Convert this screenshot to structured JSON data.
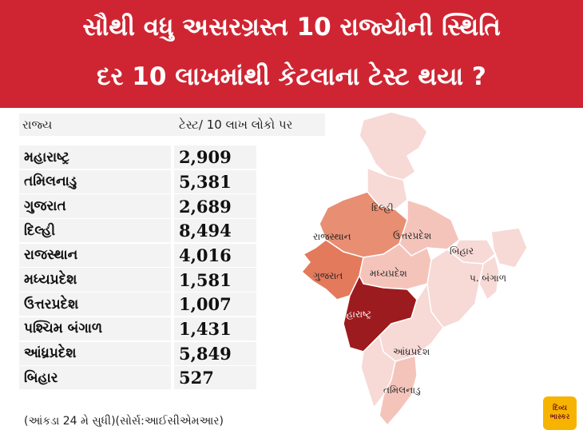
{
  "header": {
    "line1": "સૌથી વધુ અસરગ્રસ્ત  10 રાજ્યોની સ્થિતિ",
    "line2": "દર 10 લાખમાંથી કેટલાના ટેસ્ટ થયા ?"
  },
  "table": {
    "col1": "રાજ્ય",
    "col2": "ટેસ્ટ/ 10 લાખ લોકો પર",
    "rows": [
      {
        "name": "મહારાષ્ટ્ર",
        "value": "2,909"
      },
      {
        "name": "તમિલનાડુ",
        "value": "5,381"
      },
      {
        "name": "ગુજરાત",
        "value": "2,689"
      },
      {
        "name": "દિલ્હી",
        "value": "8,494"
      },
      {
        "name": "રાજસ્થાન",
        "value": "4,016"
      },
      {
        "name": "મધ્યપ્રદેશ",
        "value": "1,581"
      },
      {
        "name": "ઉત્તરપ્રદેશ",
        "value": "1,007"
      },
      {
        "name": "પશ્ચિમ બંગાળ",
        "value": "1,431"
      },
      {
        "name": "આંધ્રપ્રદેશ",
        "value": "5,849"
      },
      {
        "name": "બિહાર",
        "value": "527"
      }
    ]
  },
  "source": "(આંકડા 24 મે સુધી)(સોર્સ:આઈસીએમઆર)",
  "map": {
    "labels": {
      "delhi": "દિલ્હી",
      "rajasthan": "રાજસ્થાન",
      "uttarpradesh": "ઉત્તરપ્રદેશ",
      "bihar": "બિહાર",
      "gujarat": "ગુજરાત",
      "madhyapradesh": "મધ્યપ્રદેશ",
      "bengal": "પ. બંગાળ",
      "maharashtra": "મહારાષ્ટ્ર",
      "andhra": "આંધ્રપ્રદેશ",
      "tamilnadu": "તમિલનાડુ"
    },
    "colors": {
      "base": "#f7d9d6",
      "light": "#f4c4bb",
      "medium": "#e88e72",
      "strong": "#e37a5c",
      "dark": "#9c1b1e"
    }
  },
  "logo": {
    "line1": "દિવ્ય",
    "line2": "ભાસ્કર"
  }
}
